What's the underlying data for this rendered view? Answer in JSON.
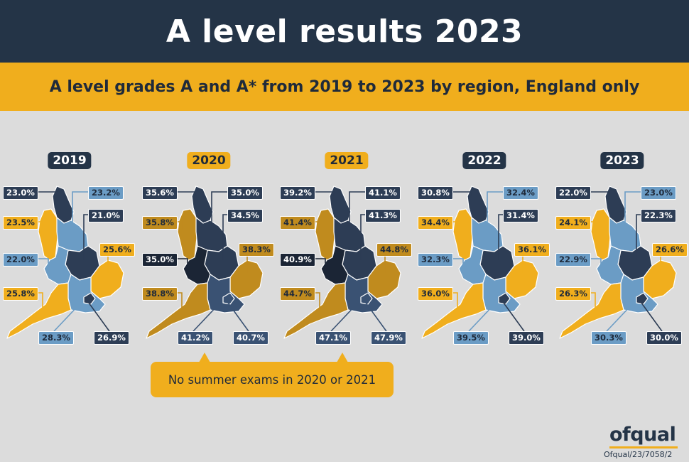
{
  "title": "A level results 2023",
  "subtitle": "A level grades A and A* from 2019 to 2023 by region, England only",
  "colors": {
    "navy": "#243447",
    "header_bg": "#243447",
    "gold": "#f0ae1d",
    "page_bg": "#dcdcdc",
    "region_shades": [
      "#1b2535",
      "#2d3d55",
      "#3a5273",
      "#6b9cc5",
      "#f0ae1d",
      "#c08b1e"
    ]
  },
  "regions": [
    "North East",
    "North West",
    "Yorkshire and the Humber",
    "East Midlands",
    "West Midlands",
    "East of England",
    "London",
    "South East",
    "South West"
  ],
  "chart_data": [
    {
      "type": "map",
      "year": "2019",
      "badge": "dark",
      "values": {
        "North East": "23.0%",
        "North West": "23.5%",
        "Yorkshire and the Humber": "23.2%",
        "East Midlands": "21.0%",
        "West Midlands": "22.0%",
        "East of England": "25.6%",
        "London": "26.9%",
        "South East": "28.3%",
        "South West": "25.8%"
      },
      "colors": {
        "North East": "#2d3d55",
        "North West": "#f0ae1d",
        "Yorkshire and the Humber": "#6b9cc5",
        "East Midlands": "#2d3d55",
        "West Midlands": "#6b9cc5",
        "East of England": "#f0ae1d",
        "London": "#2d3d55",
        "South East": "#6b9cc5",
        "South West": "#f0ae1d"
      }
    },
    {
      "type": "map",
      "year": "2020",
      "badge": "gold",
      "values": {
        "North East": "35.6%",
        "North West": "35.8%",
        "Yorkshire and the Humber": "35.0%",
        "East Midlands": "34.5%",
        "West Midlands": "35.0%",
        "East of England": "38.3%",
        "London": "40.7%",
        "South East": "41.2%",
        "South West": "38.8%"
      },
      "colors": {
        "North East": "#2d3d55",
        "North West": "#c08b1e",
        "Yorkshire and the Humber": "#2d3d55",
        "East Midlands": "#2d3d55",
        "West Midlands": "#1b2535",
        "East of England": "#c08b1e",
        "London": "#3a5273",
        "South East": "#3a5273",
        "South West": "#c08b1e"
      }
    },
    {
      "type": "map",
      "year": "2021",
      "badge": "gold",
      "values": {
        "North East": "39.2%",
        "North West": "41.4%",
        "Yorkshire and the Humber": "41.1%",
        "East Midlands": "41.3%",
        "West Midlands": "40.9%",
        "East of England": "44.8%",
        "London": "47.9%",
        "South East": "47.1%",
        "South West": "44.7%"
      },
      "colors": {
        "North East": "#2d3d55",
        "North West": "#c08b1e",
        "Yorkshire and the Humber": "#2d3d55",
        "East Midlands": "#2d3d55",
        "West Midlands": "#1b2535",
        "East of England": "#c08b1e",
        "London": "#3a5273",
        "South East": "#3a5273",
        "South West": "#c08b1e"
      }
    },
    {
      "type": "map",
      "year": "2022",
      "badge": "dark",
      "values": {
        "North East": "30.8%",
        "North West": "34.4%",
        "Yorkshire and the Humber": "32.4%",
        "East Midlands": "31.4%",
        "West Midlands": "32.3%",
        "East of England": "36.1%",
        "London": "39.0%",
        "South East": "39.5%",
        "South West": "36.0%"
      },
      "colors": {
        "North East": "#2d3d55",
        "North West": "#f0ae1d",
        "Yorkshire and the Humber": "#6b9cc5",
        "East Midlands": "#2d3d55",
        "West Midlands": "#6b9cc5",
        "East of England": "#f0ae1d",
        "London": "#2d3d55",
        "South East": "#6b9cc5",
        "South West": "#f0ae1d"
      }
    },
    {
      "type": "map",
      "year": "2023",
      "badge": "dark",
      "values": {
        "North East": "22.0%",
        "North West": "24.1%",
        "Yorkshire and the Humber": "23.0%",
        "East Midlands": "22.3%",
        "West Midlands": "22.9%",
        "East of England": "26.6%",
        "London": "30.0%",
        "South East": "30.3%",
        "South West": "26.3%"
      },
      "colors": {
        "North East": "#2d3d55",
        "North West": "#f0ae1d",
        "Yorkshire and the Humber": "#6b9cc5",
        "East Midlands": "#2d3d55",
        "West Midlands": "#6b9cc5",
        "East of England": "#f0ae1d",
        "London": "#2d3d55",
        "South East": "#6b9cc5",
        "South West": "#f0ae1d"
      }
    }
  ],
  "callout": "No summer exams in 2020 or 2021",
  "logo": "ofqual",
  "reference": "Ofqual/23/7058/2"
}
